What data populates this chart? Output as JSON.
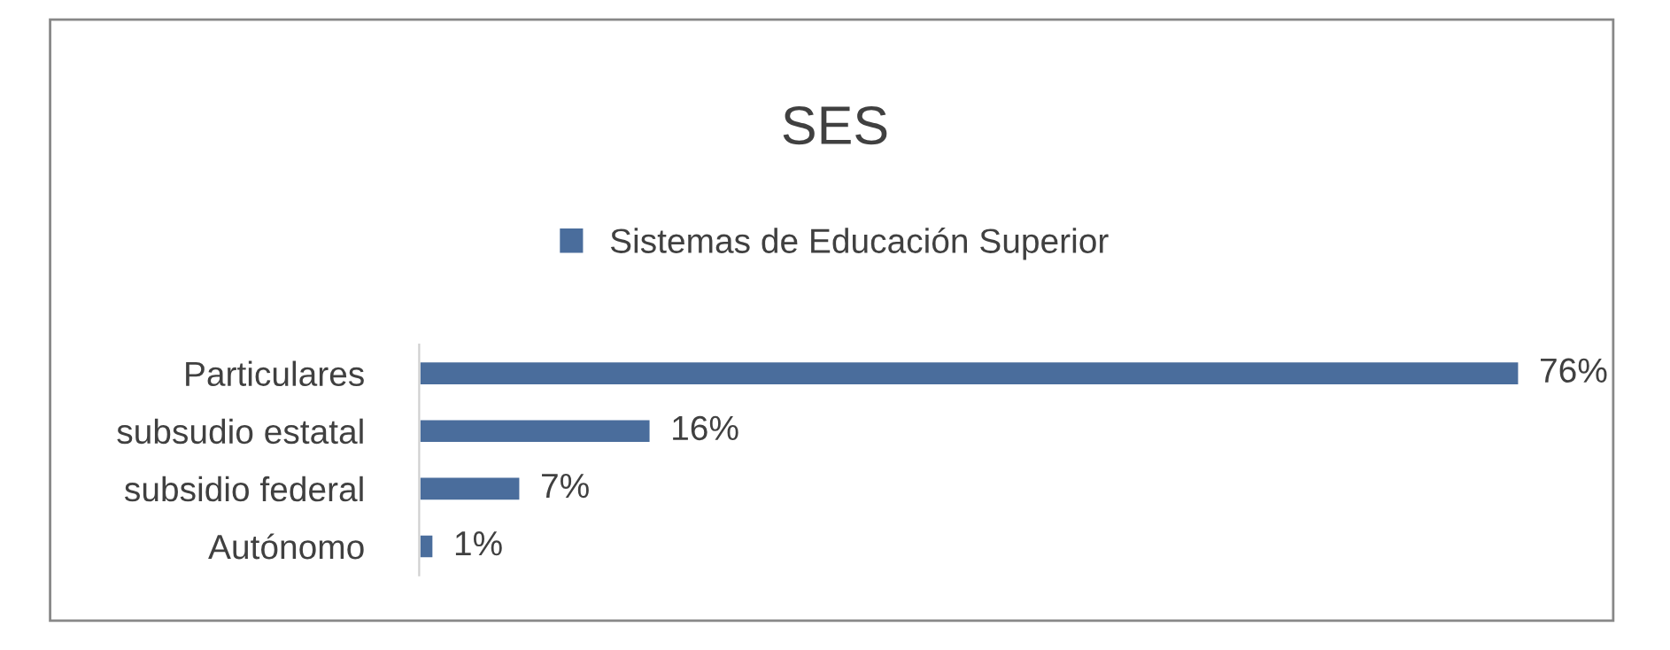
{
  "chart_data": {
    "type": "bar",
    "orientation": "horizontal",
    "title": "SES",
    "categories": [
      "Particulares",
      "subsudio estatal",
      "subsidio federal",
      "Autónomo"
    ],
    "series": [
      {
        "name": "Sistemas de Educación Superior",
        "color": "#4a6d9c",
        "values": [
          76,
          16,
          7,
          1
        ],
        "value_labels": [
          "76%",
          "16%",
          "7%",
          "1%"
        ]
      }
    ],
    "legend": "top",
    "grid": false
  }
}
